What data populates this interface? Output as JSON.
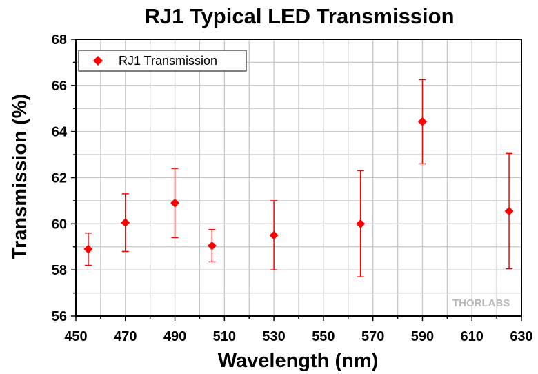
{
  "chart_data": {
    "type": "scatter",
    "title": "RJ1 Typical LED Transmission",
    "xlabel": "Wavelength (nm)",
    "ylabel": "Transmission (%)",
    "xlim": [
      450,
      630
    ],
    "ylim": [
      56,
      68
    ],
    "xticks": [
      "450",
      "470",
      "490",
      "510",
      "530",
      "550",
      "570",
      "590",
      "610",
      "630"
    ],
    "yticks": [
      "56",
      "58",
      "60",
      "62",
      "64",
      "66",
      "68"
    ],
    "grid": true,
    "legend_position": "top-left",
    "watermark": "THORLABS",
    "color": "#ff0000",
    "series": [
      {
        "name": "RJ1 Transmission",
        "marker": "diamond",
        "x": [
          455,
          470,
          490,
          505,
          530,
          565,
          590,
          625
        ],
        "y": [
          58.9,
          60.05,
          60.9,
          59.05,
          59.5,
          60.0,
          64.43,
          60.55
        ],
        "y_low": [
          58.2,
          58.8,
          59.4,
          58.35,
          58.0,
          57.7,
          62.6,
          58.05
        ],
        "y_high": [
          59.6,
          61.3,
          62.4,
          59.75,
          61.0,
          62.3,
          66.25,
          63.05
        ]
      }
    ]
  }
}
